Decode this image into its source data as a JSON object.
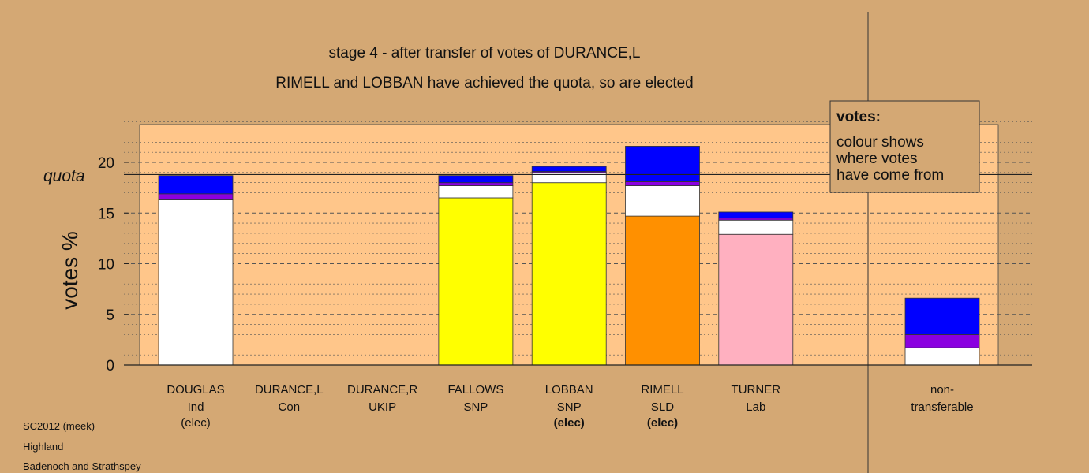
{
  "chart_data": {
    "type": "bar",
    "stacked": true,
    "title": "stage 4 - after transfer of votes of DURANCE,L",
    "subtitle": "RIMELL and LOBBAN have achieved the quota, so are elected",
    "ylabel": "votes %",
    "ylim": [
      0,
      24
    ],
    "yticks": [
      0,
      5,
      10,
      15,
      20
    ],
    "quota": 18.8,
    "quota_label": "quota",
    "legend": {
      "title": "votes:",
      "lines": [
        "colour shows",
        "where votes",
        "have come from"
      ],
      "placement": "top-right"
    },
    "categories": [
      {
        "name": "DOUGLAS",
        "party": "Ind",
        "elected": "(elec)",
        "segments": [
          {
            "color": "#ffffff",
            "value": 16.3
          },
          {
            "color": "#8a00e0",
            "value": 0.6
          },
          {
            "color": "#0000ff",
            "value": 1.8
          }
        ]
      },
      {
        "name": "DURANCE,L",
        "party": "Con",
        "elected": "",
        "segments": []
      },
      {
        "name": "DURANCE,R",
        "party": "UKIP",
        "elected": "",
        "segments": []
      },
      {
        "name": "FALLOWS",
        "party": "SNP",
        "elected": "",
        "segments": [
          {
            "color": "#ffff00",
            "value": 16.5
          },
          {
            "color": "#ffffff",
            "value": 1.2
          },
          {
            "color": "#8a00e0",
            "value": 0.3
          },
          {
            "color": "#0000ff",
            "value": 0.7
          }
        ]
      },
      {
        "name": "LOBBAN",
        "party": "SNP",
        "elected": "(elec)",
        "segments": [
          {
            "color": "#ffff00",
            "value": 18.0
          },
          {
            "color": "#ffffff",
            "value": 1.0
          },
          {
            "color": "#8a00e0",
            "value": 0.1
          },
          {
            "color": "#0000ff",
            "value": 0.5
          }
        ]
      },
      {
        "name": "RIMELL",
        "party": "SLD",
        "elected": "(elec)",
        "segments": [
          {
            "color": "#ff9000",
            "value": 14.7
          },
          {
            "color": "#ffffff",
            "value": 3.0
          },
          {
            "color": "#8a00e0",
            "value": 0.4
          },
          {
            "color": "#0000ff",
            "value": 3.5
          }
        ]
      },
      {
        "name": "TURNER",
        "party": "Lab",
        "elected": "",
        "segments": [
          {
            "color": "#ffb0c0",
            "value": 12.9
          },
          {
            "color": "#ffffff",
            "value": 1.4
          },
          {
            "color": "#8a00e0",
            "value": 0.2
          },
          {
            "color": "#0000ff",
            "value": 0.6
          }
        ]
      }
    ],
    "non_transferable": {
      "label_line1": "non-",
      "label_line2": "transferable",
      "segments": [
        {
          "color": "#ffffff",
          "value": 1.7
        },
        {
          "color": "#8a00e0",
          "value": 1.3
        },
        {
          "color": "#0000ff",
          "value": 3.6
        }
      ]
    }
  },
  "footer": {
    "line1": "SC2012 (meek)",
    "line2": "Highland",
    "line3": "Badenoch and Strathspey"
  }
}
